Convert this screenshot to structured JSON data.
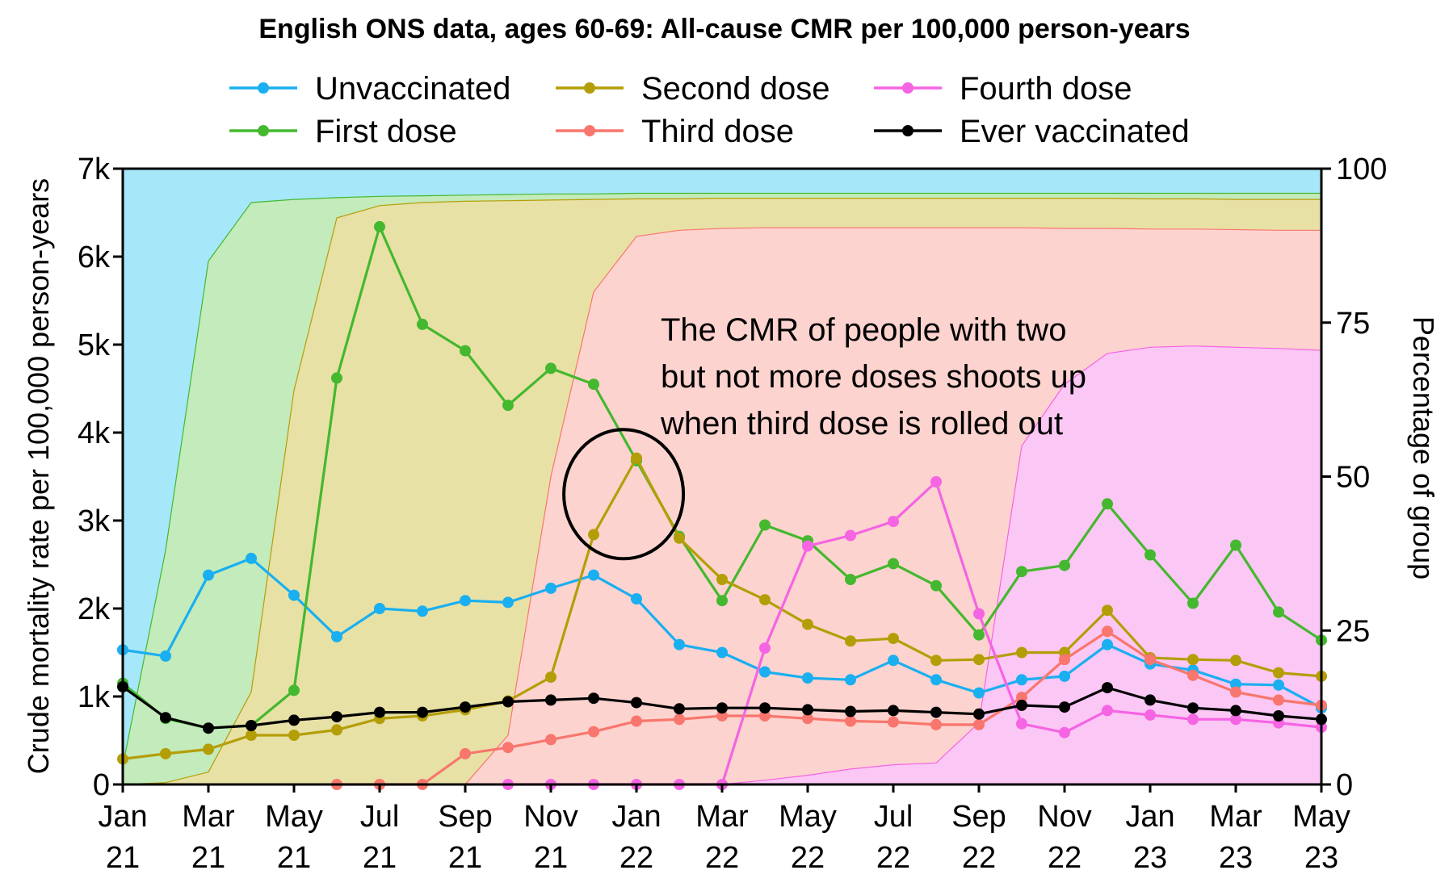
{
  "chart_data": {
    "type": "line",
    "title": "English ONS data, ages 60-69: All-cause CMR per 100,000 person-years",
    "xlabel": "",
    "ylabel": "Crude mortality rate per 100,000 person-years",
    "y2label": "Percentage of group",
    "ylim": [
      0,
      7000
    ],
    "y2lim": [
      0,
      100
    ],
    "grid": false,
    "legend_position": "top",
    "x": [
      "Jan 21",
      "Feb 21",
      "Mar 21",
      "Apr 21",
      "May 21",
      "Jun 21",
      "Jul 21",
      "Aug 21",
      "Sep 21",
      "Oct 21",
      "Nov 21",
      "Dec 21",
      "Jan 22",
      "Feb 22",
      "Mar 22",
      "Apr 22",
      "May 22",
      "Jun 22",
      "Jul 22",
      "Aug 22",
      "Sep 22",
      "Oct 22",
      "Nov 22",
      "Dec 22",
      "Jan 23",
      "Feb 23",
      "Mar 23",
      "Apr 23",
      "May 23"
    ],
    "x_ticks": [
      {
        "index": 0,
        "line1": "Jan",
        "line2": "21"
      },
      {
        "index": 2,
        "line1": "Mar",
        "line2": "21"
      },
      {
        "index": 4,
        "line1": "May",
        "line2": "21"
      },
      {
        "index": 6,
        "line1": "Jul",
        "line2": "21"
      },
      {
        "index": 8,
        "line1": "Sep",
        "line2": "21"
      },
      {
        "index": 10,
        "line1": "Nov",
        "line2": "21"
      },
      {
        "index": 12,
        "line1": "Jan",
        "line2": "22"
      },
      {
        "index": 14,
        "line1": "Mar",
        "line2": "22"
      },
      {
        "index": 16,
        "line1": "May",
        "line2": "22"
      },
      {
        "index": 18,
        "line1": "Jul",
        "line2": "22"
      },
      {
        "index": 20,
        "line1": "Sep",
        "line2": "22"
      },
      {
        "index": 22,
        "line1": "Nov",
        "line2": "22"
      },
      {
        "index": 24,
        "line1": "Jan",
        "line2": "23"
      },
      {
        "index": 26,
        "line1": "Mar",
        "line2": "23"
      },
      {
        "index": 28,
        "line1": "May",
        "line2": "23"
      }
    ],
    "y_ticks": [
      {
        "value": 0,
        "label": "0"
      },
      {
        "value": 1000,
        "label": "1k"
      },
      {
        "value": 2000,
        "label": "2k"
      },
      {
        "value": 3000,
        "label": "3k"
      },
      {
        "value": 4000,
        "label": "4k"
      },
      {
        "value": 5000,
        "label": "5k"
      },
      {
        "value": 6000,
        "label": "6k"
      },
      {
        "value": 7000,
        "label": "7k"
      }
    ],
    "y2_ticks": [
      {
        "value": 0,
        "label": "0"
      },
      {
        "value": 25,
        "label": "25"
      },
      {
        "value": 50,
        "label": "50"
      },
      {
        "value": 75,
        "label": "75"
      },
      {
        "value": 100,
        "label": "100"
      }
    ],
    "series": [
      {
        "name": "Unvaccinated",
        "color": "#1aaff0",
        "values": [
          1530,
          1460,
          2380,
          2570,
          2150,
          1680,
          2000,
          1970,
          2090,
          2070,
          2230,
          2380,
          2110,
          1590,
          1500,
          1280,
          1210,
          1190,
          1410,
          1190,
          1040,
          1190,
          1230,
          1590,
          1370,
          1300,
          1140,
          1130,
          870
        ]
      },
      {
        "name": "First dose",
        "color": "#44b82e",
        "values": [
          1150,
          750,
          640,
          670,
          1070,
          4620,
          6340,
          5230,
          4930,
          4310,
          4730,
          4550,
          3680,
          2820,
          2090,
          2950,
          2770,
          2330,
          2510,
          2260,
          1700,
          2420,
          2490,
          3190,
          2610,
          2060,
          2720,
          1960,
          1640
        ]
      },
      {
        "name": "Second dose",
        "color": "#b49e08",
        "values": [
          290,
          350,
          400,
          560,
          560,
          620,
          750,
          780,
          850,
          950,
          1220,
          2840,
          3710,
          2800,
          2330,
          2100,
          1820,
          1630,
          1660,
          1410,
          1420,
          1500,
          1500,
          1980,
          1440,
          1420,
          1410,
          1270,
          1230
        ]
      },
      {
        "name": "Third dose",
        "color": "#f8766d",
        "values": [
          null,
          null,
          null,
          null,
          null,
          0,
          0,
          0,
          350,
          420,
          510,
          600,
          720,
          740,
          780,
          780,
          750,
          720,
          710,
          680,
          680,
          990,
          1420,
          1740,
          1420,
          1240,
          1050,
          960,
          900
        ]
      },
      {
        "name": "Fourth dose",
        "color": "#f564e3",
        "values": [
          null,
          null,
          null,
          null,
          null,
          null,
          null,
          null,
          null,
          0,
          0,
          0,
          0,
          0,
          0,
          1550,
          2710,
          2830,
          2990,
          3440,
          1940,
          690,
          590,
          840,
          790,
          740,
          740,
          700,
          650
        ]
      },
      {
        "name": "Ever vaccinated",
        "color": "#000000",
        "values": [
          1110,
          760,
          640,
          670,
          730,
          770,
          820,
          820,
          880,
          940,
          960,
          980,
          930,
          860,
          870,
          870,
          850,
          830,
          840,
          820,
          800,
          900,
          880,
          1100,
          960,
          870,
          840,
          780,
          740
        ]
      }
    ],
    "areas": [
      {
        "name": "Unvaccinated",
        "fill": "#a6e8fa",
        "stroke": "#1aaff0",
        "upper": [
          100,
          100,
          100,
          100,
          100,
          100,
          100,
          100,
          100,
          100,
          100,
          100,
          100,
          100,
          100,
          100,
          100,
          100,
          100,
          100,
          100,
          100,
          100,
          100,
          100,
          100,
          100,
          100,
          100
        ]
      },
      {
        "name": "First dose",
        "fill": "#c3ebbb",
        "stroke": "#44b82e",
        "upper": [
          3,
          38,
          85,
          94.5,
          95,
          95.3,
          95.5,
          95.6,
          95.7,
          95.8,
          95.9,
          95.9,
          96,
          96,
          96,
          96,
          96,
          96,
          96,
          96,
          96,
          96,
          96,
          96,
          96,
          96,
          96,
          96,
          96
        ]
      },
      {
        "name": "Second dose",
        "fill": "#e8e1a6",
        "stroke": "#b49e08",
        "upper": [
          0,
          0.3,
          2,
          15,
          64,
          92,
          94,
          94.5,
          94.7,
          94.8,
          94.9,
          95,
          95.1,
          95.1,
          95.2,
          95.2,
          95.2,
          95.2,
          95.2,
          95.2,
          95.2,
          95.2,
          95.2,
          95.2,
          95.1,
          95.1,
          95,
          95,
          95
        ]
      },
      {
        "name": "Third dose",
        "fill": "#fdd3cf",
        "stroke": "#f8766d",
        "upper": [
          0,
          0,
          0,
          0,
          0,
          0,
          0,
          0,
          0,
          8,
          50,
          80,
          89,
          90,
          90.3,
          90.4,
          90.4,
          90.4,
          90.4,
          90.4,
          90.4,
          90.4,
          90.3,
          90.3,
          90.2,
          90.2,
          90.1,
          90,
          90
        ]
      },
      {
        "name": "Fourth dose",
        "fill": "#fbc7f5",
        "stroke": "#f564e3",
        "upper": [
          0,
          0,
          0,
          0,
          0,
          0,
          0,
          0,
          0,
          0,
          0,
          0,
          0,
          0,
          0,
          0.7,
          1.5,
          2.5,
          3.2,
          3.5,
          10,
          55,
          65,
          70,
          71,
          71.2,
          71,
          70.8,
          70.5
        ]
      }
    ],
    "annotation": {
      "lines": [
        "The CMR of people with two",
        "but not more doses shoots up",
        "when third dose is rolled out"
      ],
      "circle_center": {
        "x_index": 11.7,
        "y_value": 3300
      }
    },
    "legend": [
      {
        "label": "Unvaccinated",
        "color": "#1aaff0"
      },
      {
        "label": "Second dose",
        "color": "#b49e08"
      },
      {
        "label": "Fourth dose",
        "color": "#f564e3"
      },
      {
        "label": "First dose",
        "color": "#44b82e"
      },
      {
        "label": "Third dose",
        "color": "#f8766d"
      },
      {
        "label": "Ever vaccinated",
        "color": "#000000"
      }
    ]
  }
}
